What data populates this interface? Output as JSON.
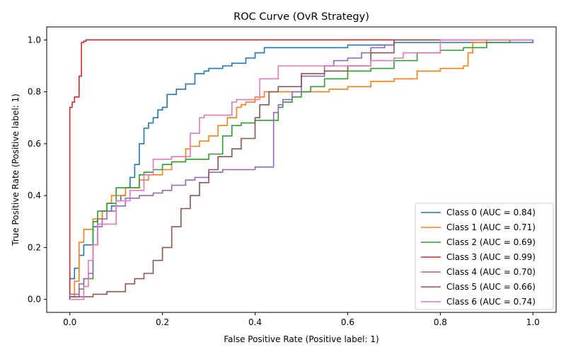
{
  "chart_data": {
    "type": "line",
    "title": "ROC Curve (OvR Strategy)",
    "xlabel": "False Positive Rate (Positive label: 1)",
    "ylabel": "True Positive Rate (Positive label: 1)",
    "xlim": [
      -0.05,
      1.05
    ],
    "ylim": [
      -0.05,
      1.05
    ],
    "x_ticks": [
      "0.0",
      "0.2",
      "0.4",
      "0.6",
      "0.8",
      "1.0"
    ],
    "y_ticks": [
      "0.0",
      "0.2",
      "0.4",
      "0.6",
      "0.8",
      "1.0"
    ],
    "grid": false,
    "legend_position": "lower-right",
    "series": [
      {
        "name": "Class 0 (AUC = 0.84)",
        "color": "#1f77b4",
        "points": [
          [
            0,
            0
          ],
          [
            0,
            0.06
          ],
          [
            0.01,
            0.08
          ],
          [
            0.02,
            0.12
          ],
          [
            0.03,
            0.17
          ],
          [
            0.04,
            0.21
          ],
          [
            0.05,
            0.21
          ],
          [
            0.06,
            0.28
          ],
          [
            0.07,
            0.31
          ],
          [
            0.08,
            0.34
          ],
          [
            0.09,
            0.34
          ],
          [
            0.1,
            0.36
          ],
          [
            0.11,
            0.38
          ],
          [
            0.12,
            0.4
          ],
          [
            0.13,
            0.43
          ],
          [
            0.14,
            0.47
          ],
          [
            0.15,
            0.52
          ],
          [
            0.16,
            0.6
          ],
          [
            0.17,
            0.66
          ],
          [
            0.18,
            0.68
          ],
          [
            0.19,
            0.7
          ],
          [
            0.2,
            0.73
          ],
          [
            0.21,
            0.74
          ],
          [
            0.23,
            0.79
          ],
          [
            0.25,
            0.81
          ],
          [
            0.27,
            0.83
          ],
          [
            0.29,
            0.87
          ],
          [
            0.3,
            0.88
          ],
          [
            0.33,
            0.89
          ],
          [
            0.35,
            0.9
          ],
          [
            0.38,
            0.91
          ],
          [
            0.4,
            0.93
          ],
          [
            0.42,
            0.95
          ],
          [
            0.45,
            0.97
          ],
          [
            0.47,
            0.97
          ],
          [
            0.6,
            0.97
          ],
          [
            0.7,
            0.98
          ],
          [
            0.8,
            0.99
          ],
          [
            1.0,
            0.99
          ],
          [
            1.0,
            1.0
          ]
        ]
      },
      {
        "name": "Class 1 (AUC = 0.71)",
        "color": "#ff7f0e",
        "points": [
          [
            0,
            0
          ],
          [
            0.01,
            0.01
          ],
          [
            0.02,
            0.07
          ],
          [
            0.03,
            0.22
          ],
          [
            0.05,
            0.27
          ],
          [
            0.07,
            0.31
          ],
          [
            0.08,
            0.34
          ],
          [
            0.09,
            0.37
          ],
          [
            0.12,
            0.4
          ],
          [
            0.15,
            0.43
          ],
          [
            0.17,
            0.46
          ],
          [
            0.2,
            0.48
          ],
          [
            0.22,
            0.5
          ],
          [
            0.25,
            0.53
          ],
          [
            0.26,
            0.58
          ],
          [
            0.28,
            0.59
          ],
          [
            0.3,
            0.61
          ],
          [
            0.32,
            0.63
          ],
          [
            0.34,
            0.67
          ],
          [
            0.36,
            0.7
          ],
          [
            0.37,
            0.74
          ],
          [
            0.38,
            0.75
          ],
          [
            0.4,
            0.76
          ],
          [
            0.42,
            0.78
          ],
          [
            0.44,
            0.8
          ],
          [
            0.56,
            0.8
          ],
          [
            0.6,
            0.81
          ],
          [
            0.65,
            0.82
          ],
          [
            0.7,
            0.84
          ],
          [
            0.75,
            0.85
          ],
          [
            0.8,
            0.88
          ],
          [
            0.85,
            0.89
          ],
          [
            0.86,
            0.9
          ],
          [
            0.87,
            0.95
          ],
          [
            0.9,
            0.99
          ],
          [
            1.0,
            1.0
          ]
        ]
      },
      {
        "name": "Class 2 (AUC = 0.69)",
        "color": "#2ca02c",
        "points": [
          [
            0,
            0
          ],
          [
            0.02,
            0.01
          ],
          [
            0.03,
            0.04
          ],
          [
            0.04,
            0.08
          ],
          [
            0.05,
            0.08
          ],
          [
            0.06,
            0.3
          ],
          [
            0.07,
            0.34
          ],
          [
            0.08,
            0.34
          ],
          [
            0.1,
            0.37
          ],
          [
            0.15,
            0.43
          ],
          [
            0.16,
            0.48
          ],
          [
            0.18,
            0.49
          ],
          [
            0.2,
            0.5
          ],
          [
            0.22,
            0.52
          ],
          [
            0.25,
            0.53
          ],
          [
            0.3,
            0.54
          ],
          [
            0.33,
            0.56
          ],
          [
            0.35,
            0.63
          ],
          [
            0.37,
            0.67
          ],
          [
            0.4,
            0.68
          ],
          [
            0.45,
            0.69
          ],
          [
            0.46,
            0.74
          ],
          [
            0.48,
            0.76
          ],
          [
            0.5,
            0.78
          ],
          [
            0.52,
            0.8
          ],
          [
            0.55,
            0.82
          ],
          [
            0.6,
            0.85
          ],
          [
            0.65,
            0.88
          ],
          [
            0.7,
            0.89
          ],
          [
            0.75,
            0.92
          ],
          [
            0.8,
            0.95
          ],
          [
            0.85,
            0.96
          ],
          [
            0.9,
            0.97
          ],
          [
            0.95,
            0.99
          ],
          [
            1.0,
            1.0
          ]
        ]
      },
      {
        "name": "Class 3 (AUC = 0.99)",
        "color": "#d62728",
        "points": [
          [
            0,
            0
          ],
          [
            0,
            0.7
          ],
          [
            0.005,
            0.74
          ],
          [
            0.01,
            0.76
          ],
          [
            0.02,
            0.78
          ],
          [
            0.025,
            0.86
          ],
          [
            0.03,
            0.99
          ],
          [
            0.035,
            0.995
          ],
          [
            0.04,
            1.0
          ],
          [
            0.58,
            1.0
          ],
          [
            1.0,
            1.0
          ]
        ]
      },
      {
        "name": "Class 4 (AUC = 0.70)",
        "color": "#9467bd",
        "points": [
          [
            0,
            0
          ],
          [
            0.02,
            0.02
          ],
          [
            0.03,
            0.06
          ],
          [
            0.04,
            0.08
          ],
          [
            0.05,
            0.1
          ],
          [
            0.06,
            0.21
          ],
          [
            0.07,
            0.28
          ],
          [
            0.08,
            0.31
          ],
          [
            0.1,
            0.34
          ],
          [
            0.12,
            0.36
          ],
          [
            0.15,
            0.39
          ],
          [
            0.18,
            0.4
          ],
          [
            0.2,
            0.41
          ],
          [
            0.22,
            0.42
          ],
          [
            0.25,
            0.44
          ],
          [
            0.27,
            0.46
          ],
          [
            0.3,
            0.47
          ],
          [
            0.33,
            0.49
          ],
          [
            0.36,
            0.5
          ],
          [
            0.4,
            0.5
          ],
          [
            0.44,
            0.51
          ],
          [
            0.45,
            0.72
          ],
          [
            0.46,
            0.75
          ],
          [
            0.48,
            0.77
          ],
          [
            0.5,
            0.8
          ],
          [
            0.55,
            0.86
          ],
          [
            0.57,
            0.9
          ],
          [
            0.6,
            0.92
          ],
          [
            0.63,
            0.93
          ],
          [
            0.65,
            0.95
          ],
          [
            0.68,
            0.97
          ],
          [
            0.7,
            0.98
          ],
          [
            0.72,
            1.0
          ],
          [
            1.0,
            1.0
          ]
        ]
      },
      {
        "name": "Class 5 (AUC = 0.66)",
        "color": "#8c564b",
        "points": [
          [
            0,
            0
          ],
          [
            0.05,
            0.01
          ],
          [
            0.08,
            0.02
          ],
          [
            0.12,
            0.03
          ],
          [
            0.14,
            0.06
          ],
          [
            0.16,
            0.08
          ],
          [
            0.18,
            0.1
          ],
          [
            0.2,
            0.15
          ],
          [
            0.22,
            0.2
          ],
          [
            0.24,
            0.28
          ],
          [
            0.26,
            0.35
          ],
          [
            0.28,
            0.4
          ],
          [
            0.3,
            0.45
          ],
          [
            0.32,
            0.5
          ],
          [
            0.35,
            0.55
          ],
          [
            0.37,
            0.58
          ],
          [
            0.4,
            0.62
          ],
          [
            0.41,
            0.7
          ],
          [
            0.43,
            0.75
          ],
          [
            0.45,
            0.8
          ],
          [
            0.5,
            0.82
          ],
          [
            0.55,
            0.87
          ],
          [
            0.6,
            0.88
          ],
          [
            0.65,
            0.9
          ],
          [
            0.7,
            0.95
          ],
          [
            0.75,
            1.0
          ],
          [
            1.0,
            1.0
          ]
        ]
      },
      {
        "name": "Class 6 (AUC = 0.74)",
        "color": "#e377c2",
        "points": [
          [
            0,
            0
          ],
          [
            0.03,
            0.0
          ],
          [
            0.04,
            0.05
          ],
          [
            0.05,
            0.15
          ],
          [
            0.06,
            0.21
          ],
          [
            0.07,
            0.29
          ],
          [
            0.1,
            0.29
          ],
          [
            0.13,
            0.38
          ],
          [
            0.16,
            0.42
          ],
          [
            0.18,
            0.48
          ],
          [
            0.2,
            0.54
          ],
          [
            0.22,
            0.54
          ],
          [
            0.26,
            0.55
          ],
          [
            0.28,
            0.64
          ],
          [
            0.29,
            0.7
          ],
          [
            0.35,
            0.71
          ],
          [
            0.36,
            0.76
          ],
          [
            0.41,
            0.77
          ],
          [
            0.41,
            0.85
          ],
          [
            0.45,
            0.85
          ],
          [
            0.46,
            0.9
          ],
          [
            0.55,
            0.9
          ],
          [
            0.65,
            0.9
          ],
          [
            0.7,
            0.92
          ],
          [
            0.72,
            0.93
          ],
          [
            0.8,
            0.95
          ],
          [
            0.87,
            1.0
          ],
          [
            1.0,
            1.0
          ]
        ]
      }
    ]
  }
}
